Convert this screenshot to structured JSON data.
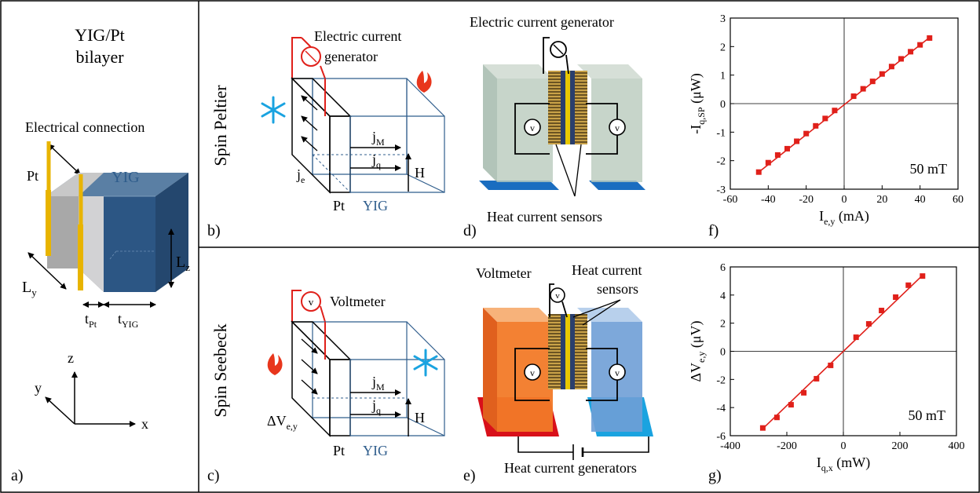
{
  "panel_a": {
    "title_line1": "YIG/Pt",
    "title_line2": "bilayer",
    "electrical_connection": "Electrical connection",
    "pt": "Pt",
    "yig": "YIG",
    "ly_main": "L",
    "ly_sub": "y",
    "lz_main": "L",
    "lz_sub": "z",
    "tpt_main": "t",
    "tpt_sub": "Pt",
    "tyig_main": "t",
    "tyig_sub": "YIG",
    "axis_z": "z",
    "axis_y": "y",
    "axis_x": "x",
    "label": "a)"
  },
  "row_labels": {
    "top": "Spin Peltier",
    "bottom": "Spin Seebeck"
  },
  "panel_b": {
    "generator_line1": "Electric current",
    "generator_line2": "generator",
    "jm_main": "j",
    "jm_sub": "M",
    "jq_main": "j",
    "jq_sub": "q",
    "je_main": "j",
    "je_sub": "e",
    "h": "H",
    "pt": "Pt",
    "yig": "YIG",
    "label": "b)"
  },
  "panel_c": {
    "voltmeter": "Voltmeter",
    "v_symbol": "v",
    "jm_main": "j",
    "jm_sub": "M",
    "jq_main": "j",
    "jq_sub": "q",
    "dv_main": "ΔV",
    "dv_sub": "e,y",
    "h": "H",
    "pt": "Pt",
    "yig": "YIG",
    "label": "c)"
  },
  "panel_d": {
    "generator": "Electric current generator",
    "sensors": "Heat current sensors",
    "v_symbol": "v",
    "label": "d)"
  },
  "panel_e": {
    "voltmeter": "Voltmeter",
    "sensors_line1": "Heat current",
    "sensors_line2": "sensors",
    "generators": "Heat current generators",
    "v_symbol": "v",
    "label": "e)"
  },
  "colors": {
    "red": "#e0201a",
    "yig_blue": "#2f5d8c",
    "ice_blue": "#1aa3e0",
    "flame_red": "#e8361c",
    "plot_red": "#e0201a",
    "gold": "#e8b400"
  },
  "chart_data": [
    {
      "type": "scatter",
      "panel": "f)",
      "xlabel_main": "I",
      "xlabel_sub": "e,y",
      "xlabel_unit": "(mA)",
      "ylabel_main": "-I",
      "ylabel_sub": "q,SP",
      "ylabel_unit": "(μW)",
      "annotation": "50 mT",
      "xlim": [
        -60,
        60
      ],
      "ylim": [
        -3,
        3
      ],
      "xticks": [
        -60,
        -40,
        -20,
        0,
        20,
        40,
        60
      ],
      "yticks": [
        -3,
        -2,
        -1,
        0,
        1,
        2,
        3
      ],
      "x": [
        -45,
        -40,
        -35,
        -30,
        -25,
        -20,
        -15,
        -10,
        -5,
        5,
        10,
        15,
        20,
        25,
        30,
        35,
        40,
        45
      ],
      "y": [
        -2.4,
        -2.07,
        -1.8,
        -1.58,
        -1.32,
        -1.05,
        -0.78,
        -0.52,
        -0.24,
        0.26,
        0.52,
        0.78,
        1.04,
        1.3,
        1.57,
        1.82,
        2.06,
        2.3
      ],
      "fit": [
        [
          -45,
          -2.4
        ],
        [
          45,
          2.32
        ]
      ],
      "error_bar_last": 0.08
    },
    {
      "type": "scatter",
      "panel": "g)",
      "xlabel_main": "I",
      "xlabel_sub": "q,x",
      "xlabel_unit": "(mW)",
      "ylabel_main": "ΔV",
      "ylabel_sub": "e,y",
      "ylabel_unit": "(μV)",
      "annotation": "50 mT",
      "xlim": [
        -400,
        400
      ],
      "ylim": [
        -6,
        6
      ],
      "xticks": [
        -400,
        -200,
        0,
        200,
        400
      ],
      "yticks": [
        -6,
        -4,
        -2,
        0,
        2,
        4,
        6
      ],
      "x": [
        -285,
        -235,
        -185,
        -140,
        -95,
        -45,
        45,
        90,
        135,
        185,
        230,
        280
      ],
      "y": [
        -5.45,
        -4.7,
        -3.8,
        -2.95,
        -1.95,
        -1.0,
        1.0,
        1.95,
        2.9,
        3.85,
        4.7,
        5.35
      ],
      "fit": [
        [
          -285,
          -5.5
        ],
        [
          285,
          5.5
        ]
      ]
    }
  ]
}
